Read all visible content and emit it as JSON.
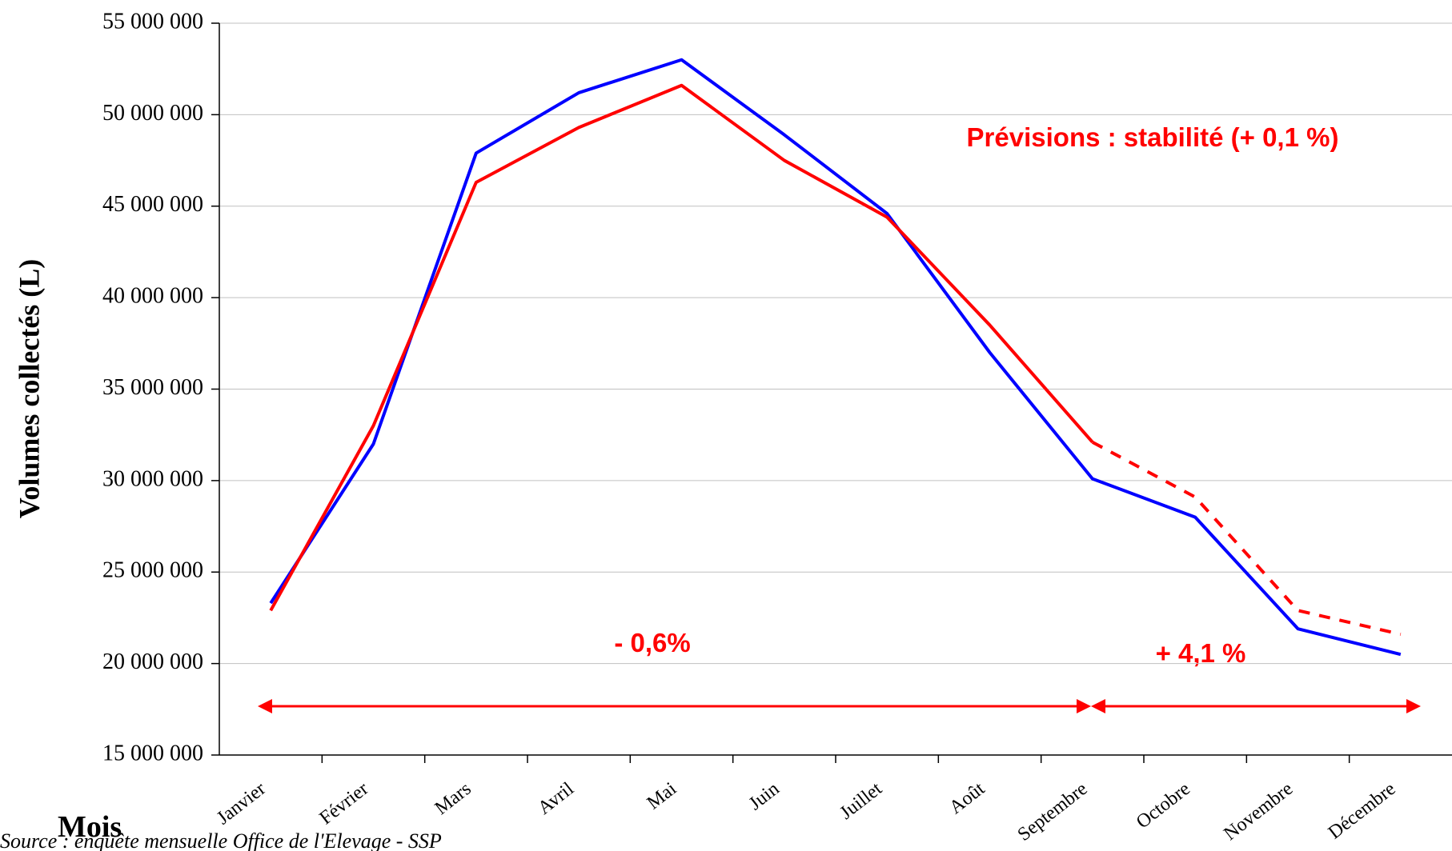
{
  "chart_data": {
    "type": "line",
    "y_axis_label": "Volumes collectés (L)",
    "x_axis_label": "Mois",
    "source": "Source : enquête mensuelle Office de l'Elevage - SSP",
    "annotations": [
      "Prévisions  : stabilité  (+ 0,1 %)",
      "- 0,6%",
      "+ 4,1 %"
    ],
    "categories": [
      "Janvier",
      "Février",
      "Mars",
      "Avril",
      "Mai",
      "Juin",
      "Juillet",
      "Août",
      "Septembre",
      "Octobre",
      "Novembre",
      "Décembre"
    ],
    "series": [
      {
        "color": "#0000ff",
        "values": [
          23300000,
          32000000,
          47900000,
          51200000,
          53000000,
          48900000,
          44600000,
          37000000,
          30100000,
          28000000,
          21900000,
          20500000
        ]
      },
      {
        "color": "#ff0000",
        "dashed_from": 8,
        "values": [
          22900000,
          33000000,
          46300000,
          49300000,
          51600000,
          47500000,
          44400000,
          38500000,
          32100000,
          29100000,
          22900000,
          21600000
        ]
      }
    ],
    "ylim": [
      15000000,
      55000000
    ],
    "yticks": [
      {
        "value": 15000000,
        "label": "15 000 000"
      },
      {
        "value": 20000000,
        "label": "20 000 000"
      },
      {
        "value": 25000000,
        "label": "25 000 000"
      },
      {
        "value": 30000000,
        "label": "30 000 000"
      },
      {
        "value": 35000000,
        "label": "35 000 000"
      },
      {
        "value": 40000000,
        "label": "40 000 000"
      },
      {
        "value": 45000000,
        "label": "45 000 000"
      },
      {
        "value": 50000000,
        "label": "50 000 000"
      },
      {
        "value": 55000000,
        "label": "55 000 000"
      }
    ],
    "grid": true
  }
}
